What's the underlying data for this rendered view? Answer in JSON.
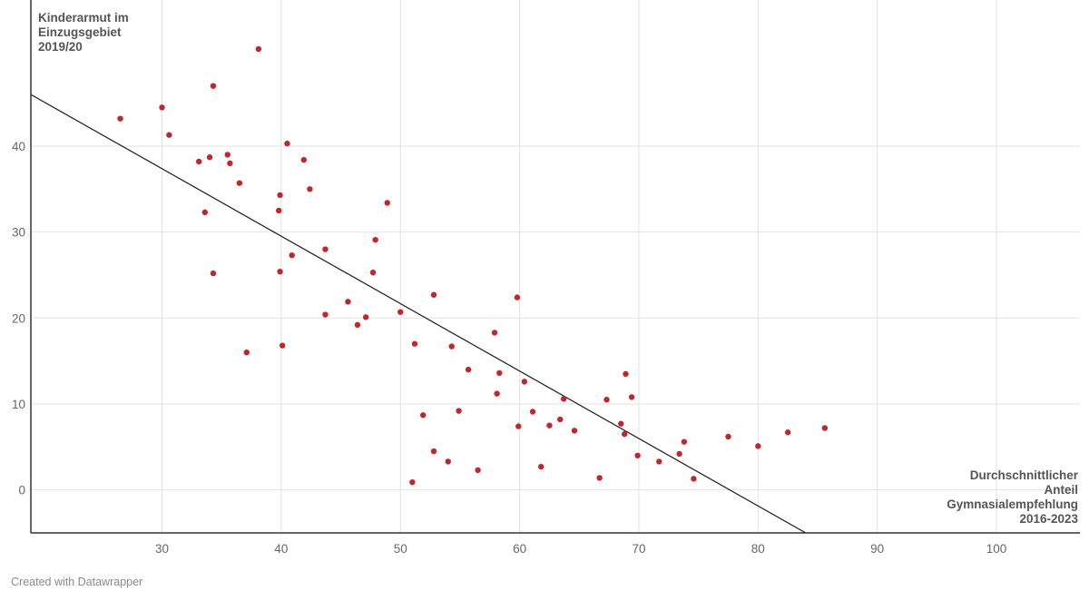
{
  "chart_data": {
    "type": "scatter",
    "ylabel_lines": [
      "Kinderarmut im",
      "Einzugsgebiet",
      "2019/20"
    ],
    "xlabel_lines": [
      "Durchschnittlicher",
      "Anteil",
      "Gymnasialempfehlung",
      "2016-2023"
    ],
    "xlim": [
      19,
      107
    ],
    "ylim": [
      -5,
      57
    ],
    "x_ticks": [
      30,
      40,
      50,
      60,
      70,
      80,
      90,
      100
    ],
    "y_ticks": [
      0,
      10,
      20,
      30,
      40
    ],
    "grid": true,
    "trendline": {
      "x": [
        19,
        84
      ],
      "y": [
        46,
        -5
      ]
    },
    "points": [
      {
        "x": 26.5,
        "y": 43.2
      },
      {
        "x": 30.0,
        "y": 44.5
      },
      {
        "x": 30.6,
        "y": 41.3
      },
      {
        "x": 33.1,
        "y": 38.2
      },
      {
        "x": 33.6,
        "y": 32.3
      },
      {
        "x": 34.0,
        "y": 38.7
      },
      {
        "x": 34.3,
        "y": 47.0
      },
      {
        "x": 34.3,
        "y": 25.2
      },
      {
        "x": 35.5,
        "y": 39.0
      },
      {
        "x": 35.7,
        "y": 38.0
      },
      {
        "x": 36.5,
        "y": 35.7
      },
      {
        "x": 37.1,
        "y": 16.0
      },
      {
        "x": 38.1,
        "y": 51.3
      },
      {
        "x": 39.8,
        "y": 32.5
      },
      {
        "x": 39.9,
        "y": 34.3
      },
      {
        "x": 39.9,
        "y": 25.4
      },
      {
        "x": 40.1,
        "y": 16.8
      },
      {
        "x": 40.5,
        "y": 40.3
      },
      {
        "x": 40.9,
        "y": 27.3
      },
      {
        "x": 41.9,
        "y": 38.4
      },
      {
        "x": 42.4,
        "y": 35.0
      },
      {
        "x": 43.7,
        "y": 28.0
      },
      {
        "x": 43.7,
        "y": 20.4
      },
      {
        "x": 45.6,
        "y": 21.9
      },
      {
        "x": 46.4,
        "y": 19.2
      },
      {
        "x": 47.1,
        "y": 20.1
      },
      {
        "x": 47.7,
        "y": 25.3
      },
      {
        "x": 47.9,
        "y": 29.1
      },
      {
        "x": 48.9,
        "y": 33.4
      },
      {
        "x": 50.0,
        "y": 20.7
      },
      {
        "x": 51.0,
        "y": 0.9
      },
      {
        "x": 51.2,
        "y": 17.0
      },
      {
        "x": 51.9,
        "y": 8.7
      },
      {
        "x": 52.8,
        "y": 4.5
      },
      {
        "x": 52.8,
        "y": 22.7
      },
      {
        "x": 54.0,
        "y": 3.3
      },
      {
        "x": 54.3,
        "y": 16.7
      },
      {
        "x": 54.9,
        "y": 9.2
      },
      {
        "x": 55.7,
        "y": 14.0
      },
      {
        "x": 56.5,
        "y": 2.3
      },
      {
        "x": 57.9,
        "y": 18.3
      },
      {
        "x": 58.1,
        "y": 11.2
      },
      {
        "x": 58.3,
        "y": 13.6
      },
      {
        "x": 59.8,
        "y": 22.4
      },
      {
        "x": 59.9,
        "y": 7.4
      },
      {
        "x": 60.4,
        "y": 12.6
      },
      {
        "x": 61.1,
        "y": 9.1
      },
      {
        "x": 61.8,
        "y": 2.7
      },
      {
        "x": 62.5,
        "y": 7.5
      },
      {
        "x": 63.4,
        "y": 8.2
      },
      {
        "x": 63.7,
        "y": 10.6
      },
      {
        "x": 64.6,
        "y": 6.9
      },
      {
        "x": 66.7,
        "y": 1.4
      },
      {
        "x": 67.3,
        "y": 10.5
      },
      {
        "x": 68.5,
        "y": 7.7
      },
      {
        "x": 68.8,
        "y": 6.5
      },
      {
        "x": 68.9,
        "y": 13.5
      },
      {
        "x": 69.4,
        "y": 10.8
      },
      {
        "x": 69.9,
        "y": 4.0
      },
      {
        "x": 71.7,
        "y": 3.3
      },
      {
        "x": 73.4,
        "y": 4.2
      },
      {
        "x": 73.8,
        "y": 5.6
      },
      {
        "x": 74.6,
        "y": 1.3
      },
      {
        "x": 77.5,
        "y": 6.2
      },
      {
        "x": 80.0,
        "y": 5.1
      },
      {
        "x": 82.5,
        "y": 6.7
      },
      {
        "x": 85.6,
        "y": 7.2
      }
    ],
    "colors": {
      "point": "#c0262b",
      "trendline": "#1a1a1a",
      "grid": "#e2e2e2",
      "axis": "#333333",
      "tick_text": "#666666"
    }
  },
  "footer": {
    "credit": "Created with Datawrapper"
  }
}
